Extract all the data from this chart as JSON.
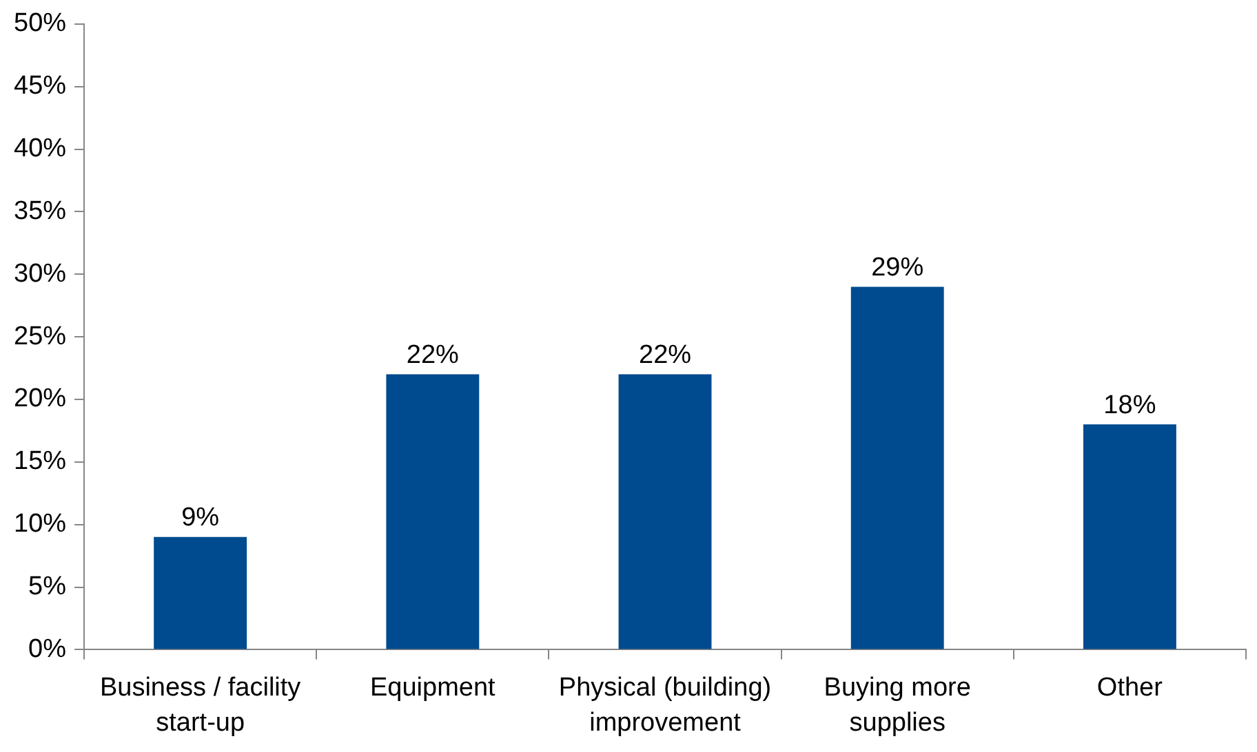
{
  "chart_data": {
    "type": "bar",
    "categories": [
      "Business / facility start-up",
      "Equipment",
      "Physical (building) improvement",
      "Buying more supplies",
      "Other"
    ],
    "values": [
      9,
      22,
      22,
      29,
      18
    ],
    "color": "#004a8f",
    "ylim": [
      0,
      50
    ],
    "yticks": [
      {
        "value": 0,
        "label": "0%"
      },
      {
        "value": 5,
        "label": "5%"
      },
      {
        "value": 10,
        "label": "10%"
      },
      {
        "value": 15,
        "label": "15%"
      },
      {
        "value": 20,
        "label": "20%"
      },
      {
        "value": 25,
        "label": "25%"
      },
      {
        "value": 30,
        "label": "30%"
      },
      {
        "value": 35,
        "label": "35%"
      },
      {
        "value": 40,
        "label": "40%"
      },
      {
        "value": 45,
        "label": "45%"
      },
      {
        "value": 50,
        "label": "50%"
      }
    ],
    "value_labels": [
      "9%",
      "22%",
      "22%",
      "29%",
      "18%"
    ],
    "grid": false,
    "legend": false
  }
}
